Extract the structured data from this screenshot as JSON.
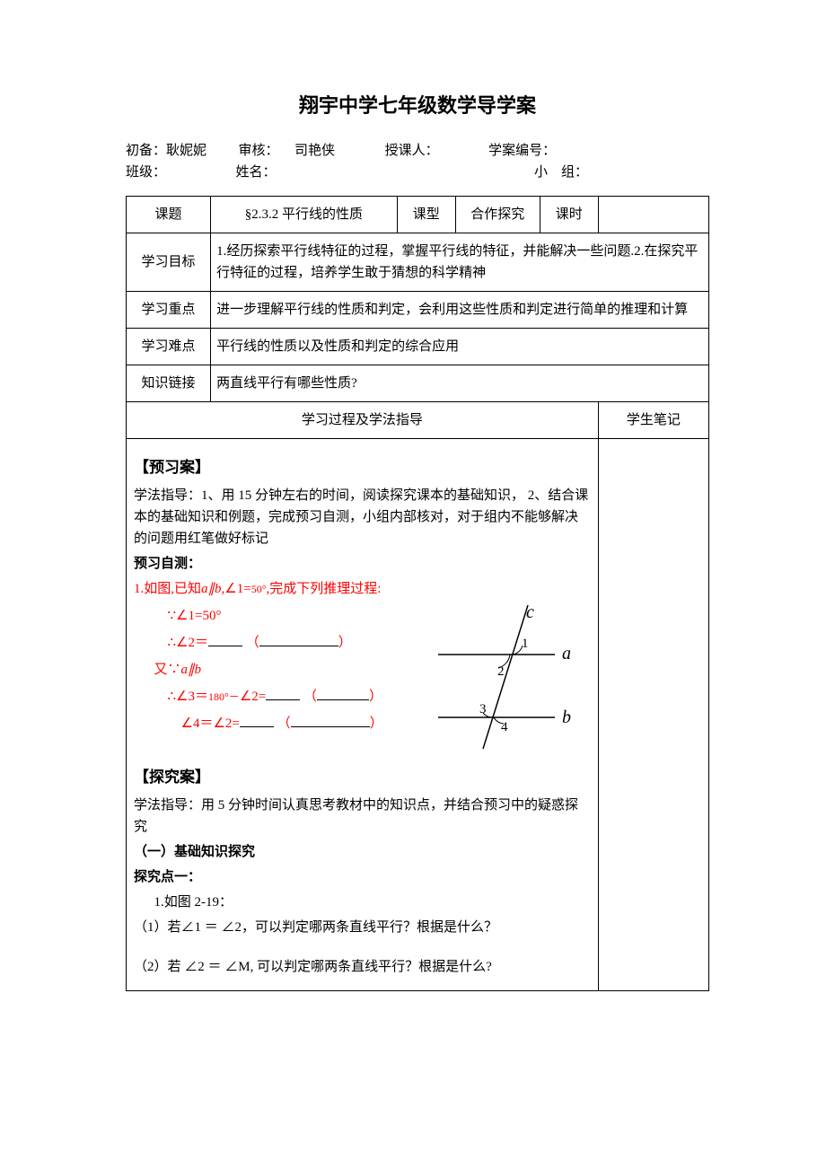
{
  "title": "翔宇中学七年级数学导学案",
  "meta": {
    "prep_label": "初备：",
    "prep_value": "耿妮妮",
    "review_label": "审核：",
    "review_value": "司艳侠",
    "teacher_label": "授课人：",
    "plan_no_label": "学案编号：",
    "class_label": "班级：",
    "name_label": "姓名：",
    "group_label": "小　组："
  },
  "hdr": {
    "topic_label": "课题",
    "topic_value": "§2.3.2 平行线的性质",
    "type_label": "课型",
    "type_value": "合作探究",
    "period_label": "课时",
    "goal_label": "学习目标",
    "goal_value": "1.经历探索平行线特征的过程，掌握平行线的特征，并能解决一些问题.2.在探究平行特征的过程，培养学生敢于猜想的科学精神",
    "focus_label": "学习重点",
    "focus_value": "进一步理解平行线的性质和判定，会利用这些性质和判定进行简单的推理和计算",
    "diff_label": "学习难点",
    "diff_value": "平行线的性质以及性质和判定的综合应用",
    "link_label": "知识链接",
    "link_value": "两直线平行有哪些性质?",
    "process_label": "学习过程及学法指导",
    "notes_label": "学生笔记"
  },
  "preview": {
    "heading": "【预习案】",
    "guide": "学法指导：1、用 15 分钟左右的时间，阅读探究课本的基础知识， 2、结合课本的基础知识和例题，完成预习自测，小组内部核对，对于组内不能够解决的问题用红笔做好标记",
    "selftest_label": "预习自测：",
    "q1_prefix": "1.如图,已知",
    "q1_ab": "a∥b",
    "q1_mid": ",∠1=",
    "q1_deg": "50°",
    "q1_suffix": ",完成下列推理过程:",
    "line1_a": "∵∠1=50°",
    "line2_a": "∴∠2＝",
    "line2_b": "（",
    "line2_c": "）",
    "line3": "又∵",
    "line3_ab": "a∥b",
    "line4_a": "∴∠3＝",
    "line4_mid": "180°－",
    "line4_b": "∠2=",
    "line4_c": "（",
    "line4_d": "）",
    "line5_a": "∠4＝∠2=",
    "line5_b": "（",
    "line5_c": "）"
  },
  "explore": {
    "heading": "【探究案】",
    "guide": "学法指导：用 5 分钟时间认真思考教材中的知识点，并结合预习中的疑惑探究",
    "sub1": "（一）基础知识探究",
    "pt_label": "探究点一：",
    "fig": "1.如图 2-19：",
    "q1": "（1）若∠1 ＝ ∠2，可以判定哪两条直线平行？根据是什么？",
    "q2": "（2）若 ∠2 ＝ ∠M, 可以判定哪两条直线平行？根据是什么?"
  },
  "diagram": {
    "labels": {
      "a": "a",
      "b": "b",
      "c": "c",
      "n1": "1",
      "n2": "2",
      "n3": "3",
      "n4": "4"
    },
    "colors": {
      "line": "#000000",
      "text": "#000000"
    }
  },
  "style": {
    "blank_short": 38,
    "blank_med": 58,
    "blank_long": 88
  }
}
